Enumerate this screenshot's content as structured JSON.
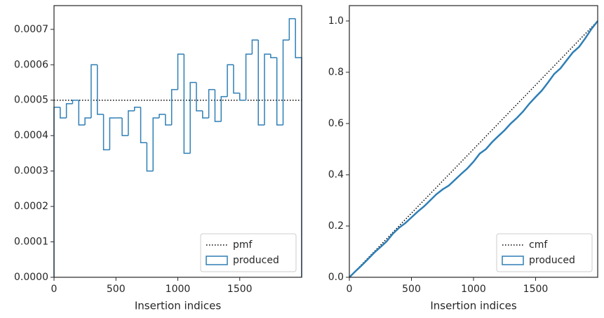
{
  "chart_data": [
    {
      "type": "histogram",
      "xlabel": "Insertion indices",
      "bins": [
        0,
        50,
        100,
        150,
        200,
        250,
        300,
        350,
        400,
        450,
        500,
        550,
        600,
        650,
        700,
        750,
        800,
        850,
        900,
        950,
        1000,
        1050,
        1100,
        1150,
        1200,
        1250,
        1300,
        1350,
        1400,
        1450,
        1500,
        1550,
        1600,
        1650,
        1700,
        1750,
        1800,
        1850,
        1900,
        1950,
        2000
      ],
      "series": [
        {
          "name": "pmf",
          "color": "#000000",
          "style": "dotted",
          "value": 0.0005
        },
        {
          "name": "produced",
          "color": "#2f7fb5",
          "style": "step",
          "values": [
            0.00048,
            0.00045,
            0.00049,
            0.0005,
            0.00043,
            0.00045,
            0.0006,
            0.00046,
            0.00036,
            0.00045,
            0.00045,
            0.0004,
            0.00047,
            0.00048,
            0.00038,
            0.0003,
            0.00045,
            0.00046,
            0.00043,
            0.00053,
            0.00063,
            0.00035,
            0.00055,
            0.00047,
            0.00045,
            0.00053,
            0.00044,
            0.00051,
            0.0006,
            0.00052,
            0.0005,
            0.00063,
            0.00067,
            0.00043,
            0.00063,
            0.00062,
            0.00043,
            0.00067,
            0.00073,
            0.00062
          ]
        }
      ],
      "xlim": [
        0,
        2000
      ],
      "ylim": [
        0,
        0.000767
      ],
      "xticks": [
        0,
        500,
        1000,
        1500
      ],
      "yticks": [
        {
          "value": 0,
          "label": "0.0000"
        },
        0.0001,
        0.0002,
        0.0003,
        0.0004,
        0.0005,
        0.0006,
        0.0007
      ],
      "legend": "lower right"
    },
    {
      "type": "line",
      "xlabel": "Insertion indices",
      "series": [
        {
          "name": "cmf",
          "color": "#000000",
          "style": "dotted",
          "x": [
            0,
            2000
          ],
          "values": [
            0,
            1
          ]
        },
        {
          "name": "produced",
          "color": "#2f7fb5",
          "style": "step",
          "x": [
            0,
            50,
            100,
            150,
            200,
            250,
            300,
            350,
            400,
            450,
            500,
            550,
            600,
            650,
            700,
            750,
            800,
            850,
            900,
            950,
            1000,
            1050,
            1100,
            1150,
            1200,
            1250,
            1300,
            1350,
            1400,
            1450,
            1500,
            1550,
            1600,
            1650,
            1700,
            1750,
            1800,
            1850,
            1900,
            1950,
            2000
          ],
          "values": [
            0,
            0.024,
            0.0465,
            0.071,
            0.096,
            0.1175,
            0.14,
            0.17,
            0.193,
            0.211,
            0.2335,
            0.256,
            0.276,
            0.2995,
            0.3235,
            0.3425,
            0.3575,
            0.38,
            0.403,
            0.4245,
            0.451,
            0.4825,
            0.5,
            0.5275,
            0.551,
            0.5735,
            0.6,
            0.622,
            0.6475,
            0.6775,
            0.7035,
            0.7285,
            0.76,
            0.7935,
            0.815,
            0.8465,
            0.8775,
            0.899,
            0.9325,
            0.969,
            1.0
          ]
        }
      ],
      "xlim": [
        0,
        2000
      ],
      "ylim": [
        0,
        1.06
      ],
      "xticks": [
        0,
        500,
        1000,
        1500
      ],
      "yticks": [
        {
          "value": 0,
          "label": "0.0"
        },
        0.2,
        0.4,
        0.6,
        0.8,
        {
          "value": 1,
          "label": "1.0"
        }
      ],
      "legend": "lower right"
    }
  ]
}
